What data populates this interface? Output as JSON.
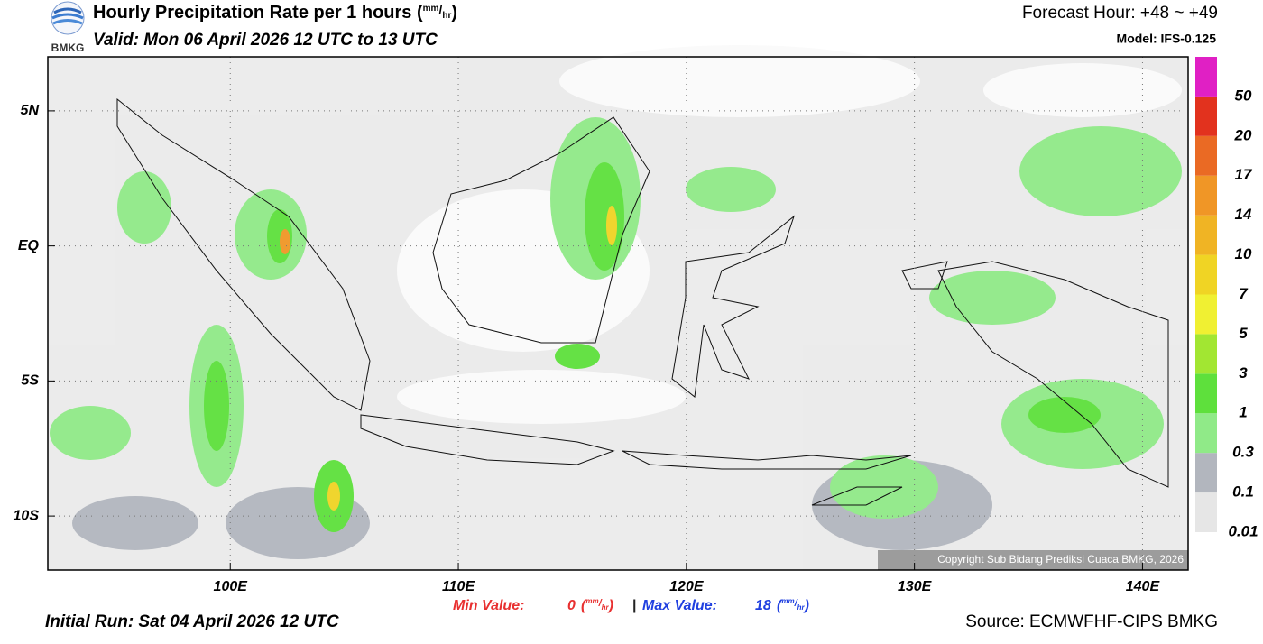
{
  "header": {
    "logo_text": "BMKG",
    "title": "Hourly Precipitation Rate per 1 hours",
    "unit": {
      "open": "(",
      "num": "mm",
      "sep": "/",
      "den": "hr",
      "close": ")"
    },
    "valid": "Valid: Mon 06 April 2026 12 UTC to 13 UTC",
    "forecast_hour": "Forecast Hour: +48 ~ +49",
    "model": "Model: IFS-0.125"
  },
  "map": {
    "lonlim": [
      92,
      142
    ],
    "latlim": [
      -12,
      7
    ],
    "xticks": [
      {
        "value": 100,
        "label": "100E"
      },
      {
        "value": 110,
        "label": "110E"
      },
      {
        "value": 120,
        "label": "120E"
      },
      {
        "value": 130,
        "label": "130E"
      },
      {
        "value": 140,
        "label": "140E"
      }
    ],
    "yticks": [
      {
        "value": 5,
        "label": "5N"
      },
      {
        "value": 0,
        "label": "EQ"
      },
      {
        "value": -5,
        "label": "5S"
      },
      {
        "value": -10,
        "label": "10S"
      }
    ],
    "copyright": "Copyright Sub Bidang Prediksi Cuaca BMKG, 2026"
  },
  "colorbar": {
    "levels": [
      0.01,
      0.1,
      0.3,
      1,
      3,
      5,
      7,
      10,
      14,
      17,
      20,
      50
    ],
    "colors": [
      "#e6e6e6",
      "#b2b6be",
      "#90ea88",
      "#5ee03c",
      "#a2e632",
      "#f0f032",
      "#f0d424",
      "#f0b424",
      "#f09626",
      "#ea6a24",
      "#e2321e",
      "#e020c4"
    ]
  },
  "stats": {
    "min_label": "Min Value:",
    "min": 0,
    "separator": "|",
    "max_label": "Max Value:",
    "max": 18
  },
  "footer": {
    "initial_run": "Initial Run: Sat 04 April 2026 12 UTC",
    "source": "Source: ECMWFHF-CIPS BMKG"
  }
}
